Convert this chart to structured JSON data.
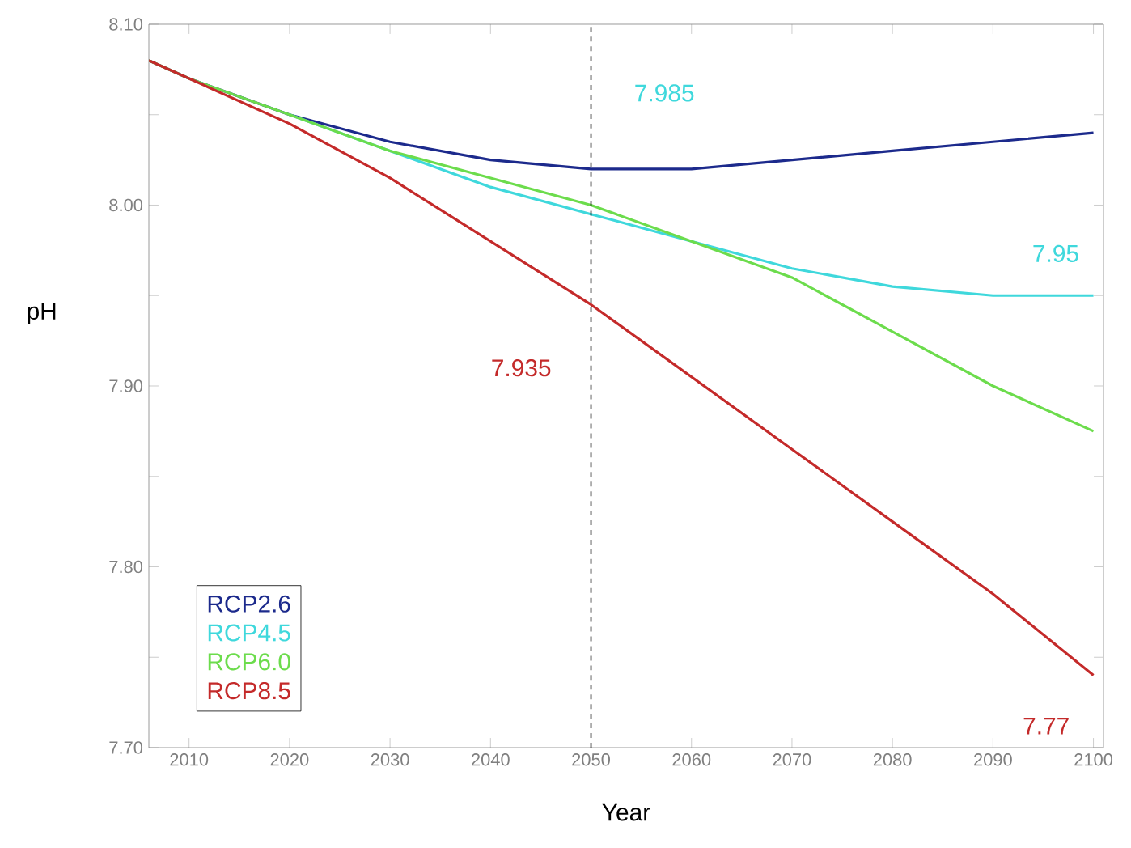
{
  "chart_data": {
    "type": "line",
    "xlabel": "Year",
    "ylabel": "pH",
    "x": [
      2006,
      2010,
      2020,
      2030,
      2040,
      2050,
      2060,
      2070,
      2080,
      2090,
      2100
    ],
    "series": [
      {
        "name": "RCP2.6",
        "color": "#1c2a8c",
        "values": [
          8.08,
          8.07,
          8.05,
          8.035,
          8.025,
          8.02,
          8.02,
          8.025,
          8.03,
          8.035,
          8.04
        ]
      },
      {
        "name": "RCP4.5",
        "color": "#3fd8dc",
        "values": [
          null,
          null,
          8.05,
          8.03,
          8.01,
          7.995,
          7.98,
          7.965,
          7.955,
          7.95,
          7.95
        ]
      },
      {
        "name": "RCP6.0",
        "color": "#6cdc4c",
        "values": [
          8.08,
          8.07,
          8.05,
          8.03,
          8.015,
          8.0,
          7.98,
          7.96,
          7.93,
          7.9,
          7.875
        ]
      },
      {
        "name": "RCP8.5",
        "color": "#c42a2a",
        "values": [
          8.08,
          8.07,
          8.045,
          8.015,
          7.98,
          7.945,
          7.905,
          7.865,
          7.825,
          7.785,
          7.74
        ]
      }
    ],
    "xlim": [
      2006,
      2101
    ],
    "ylim": [
      7.7,
      8.1
    ],
    "xticks": [
      2010,
      2020,
      2030,
      2040,
      2050,
      2060,
      2070,
      2080,
      2090,
      2100
    ],
    "yticks": [
      {
        "value": 7.7,
        "label": "7.70"
      },
      {
        "value": 7.75,
        "label": null
      },
      {
        "value": 7.8,
        "label": "7.80"
      },
      {
        "value": 7.85,
        "label": null
      },
      {
        "value": 7.9,
        "label": "7.90"
      },
      {
        "value": 7.95,
        "label": null
      },
      {
        "value": 8.0,
        "label": "8.00"
      },
      {
        "value": 8.05,
        "label": null
      },
      {
        "value": 8.1,
        "label": "8.10"
      }
    ],
    "ref_lines": [
      {
        "axis": "x",
        "value": 2050,
        "color": "#000000",
        "line_style": "dashed"
      }
    ],
    "annotations": [
      "7.985",
      "7.935",
      "7.95",
      "7.77"
    ],
    "legend": "bottom left",
    "grid": false,
    "marker": "none",
    "line_style": "solid"
  }
}
